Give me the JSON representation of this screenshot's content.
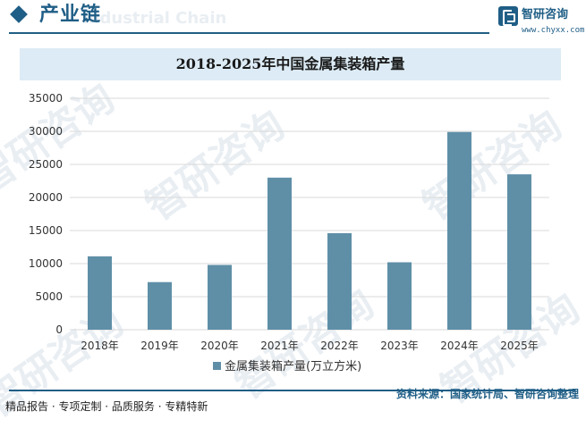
{
  "header": {
    "section_title": "产业链",
    "watermark_en": "Industrial Chain"
  },
  "brand": {
    "name": "智研咨询",
    "url": "www.chyxx.com"
  },
  "watermark": {
    "text": "智研咨询"
  },
  "footer": {
    "left_text": "精品报告 · 专项定制 · 品质服务 · 专精特新",
    "source": "资料来源：国家统计局、智研咨询整理"
  },
  "colors": {
    "brand": "#1f5e86",
    "bar": "#5f8fa7",
    "title_band": "#dcebf5",
    "grid": "#d9d9d9"
  },
  "chart_data": {
    "type": "bar",
    "title": "2018-2025年中国金属集装箱产量",
    "categories": [
      "2018年",
      "2019年",
      "2020年",
      "2021年",
      "2022年",
      "2023年",
      "2024年",
      "2025年"
    ],
    "series": [
      {
        "name": "金属集装箱产量(万立方米)",
        "values": [
          11100,
          7200,
          9800,
          23000,
          14600,
          10200,
          29900,
          23500
        ]
      }
    ],
    "yticks": [
      0,
      5000,
      10000,
      15000,
      20000,
      25000,
      30000,
      35000
    ],
    "ylim": [
      0,
      35000
    ],
    "xlabel": "",
    "ylabel": "",
    "grid": true,
    "legend": "bottom-center"
  }
}
